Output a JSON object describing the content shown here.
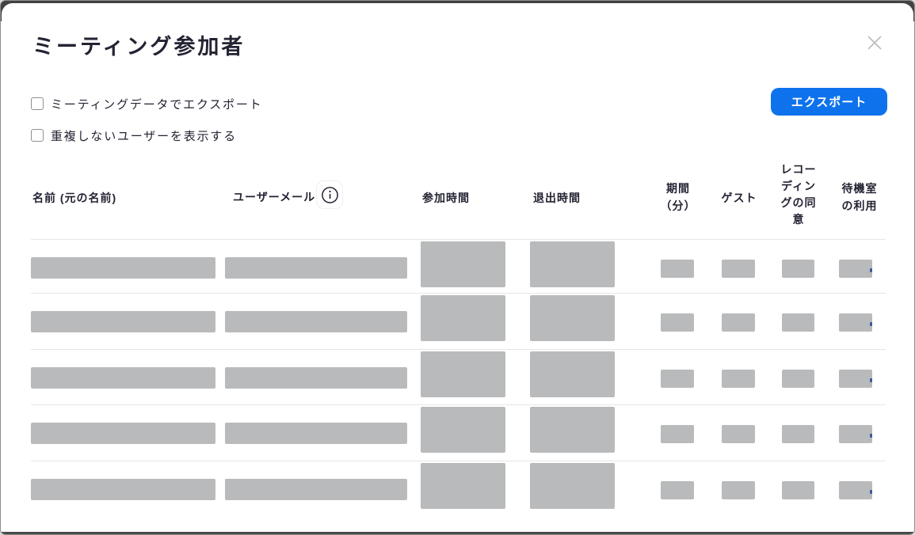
{
  "dialog": {
    "title": "ミーティング参加者",
    "options": [
      {
        "label": "ミーティングデータでエクスポート",
        "checked": false
      },
      {
        "label": "重複しないユーザーを表示する",
        "checked": false
      }
    ],
    "export_button": {
      "label": "エクスポート"
    }
  },
  "table": {
    "columns": [
      {
        "id": "name",
        "label": "名前 (元の名前)"
      },
      {
        "id": "email",
        "label": "ユーザーメール",
        "info_icon": true
      },
      {
        "id": "join_time",
        "label": "参加時間"
      },
      {
        "id": "leave_time",
        "label": "退出時間"
      },
      {
        "id": "duration_min",
        "label": "期間\n（分）"
      },
      {
        "id": "guest",
        "label": "ゲスト"
      },
      {
        "id": "recording_consent",
        "label": "レコー\nディン\nグの同\n意"
      },
      {
        "id": "waiting_room",
        "label": "待機室\nの利用"
      }
    ],
    "rows": [
      {
        "redacted": true
      },
      {
        "redacted": true
      },
      {
        "redacted": true
      },
      {
        "redacted": true
      },
      {
        "redacted": true
      }
    ]
  },
  "icons": {
    "close": "close-x-icon",
    "info": "info-circle-icon"
  },
  "colors": {
    "accent_blue": "#0E72ED",
    "text": "#232333",
    "redaction_gray": "#b9babc",
    "separator": "#e6e6ea",
    "frame_dark": "#424242"
  }
}
